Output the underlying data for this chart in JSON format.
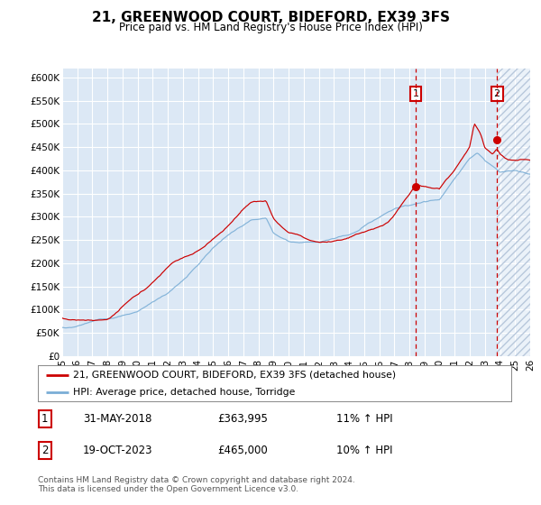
{
  "title": "21, GREENWOOD COURT, BIDEFORD, EX39 3FS",
  "subtitle": "Price paid vs. HM Land Registry's House Price Index (HPI)",
  "legend_label_red": "21, GREENWOOD COURT, BIDEFORD, EX39 3FS (detached house)",
  "legend_label_blue": "HPI: Average price, detached house, Torridge",
  "annotation1_date": "31-MAY-2018",
  "annotation1_price": "£363,995",
  "annotation1_hpi": "11% ↑ HPI",
  "annotation2_date": "19-OCT-2023",
  "annotation2_price": "£465,000",
  "annotation2_hpi": "10% ↑ HPI",
  "footer": "Contains HM Land Registry data © Crown copyright and database right 2024.\nThis data is licensed under the Open Government Licence v3.0.",
  "ylim": [
    0,
    620000
  ],
  "yticks": [
    0,
    50000,
    100000,
    150000,
    200000,
    250000,
    300000,
    350000,
    400000,
    450000,
    500000,
    550000,
    600000
  ],
  "ytick_labels": [
    "£0",
    "£50K",
    "£100K",
    "£150K",
    "£200K",
    "£250K",
    "£300K",
    "£350K",
    "£400K",
    "£450K",
    "£500K",
    "£550K",
    "£600K"
  ],
  "bg_color": "#dce8f5",
  "hatch_edgecolor": "#b8c8dc",
  "red_line_color": "#cc0000",
  "blue_line_color": "#7aaed6",
  "marker1_x_year": 2018.42,
  "marker1_y": 363995,
  "marker2_x_year": 2023.8,
  "marker2_y": 465000,
  "vline1_x_year": 2018.42,
  "vline2_x_year": 2023.8,
  "start_year": 1995.0,
  "end_year": 2026.0,
  "xtick_years": [
    1995,
    1996,
    1997,
    1998,
    1999,
    2000,
    2001,
    2002,
    2003,
    2004,
    2005,
    2006,
    2007,
    2008,
    2009,
    2010,
    2011,
    2012,
    2013,
    2014,
    2015,
    2016,
    2017,
    2018,
    2019,
    2020,
    2021,
    2022,
    2023,
    2024,
    2025,
    2026
  ]
}
